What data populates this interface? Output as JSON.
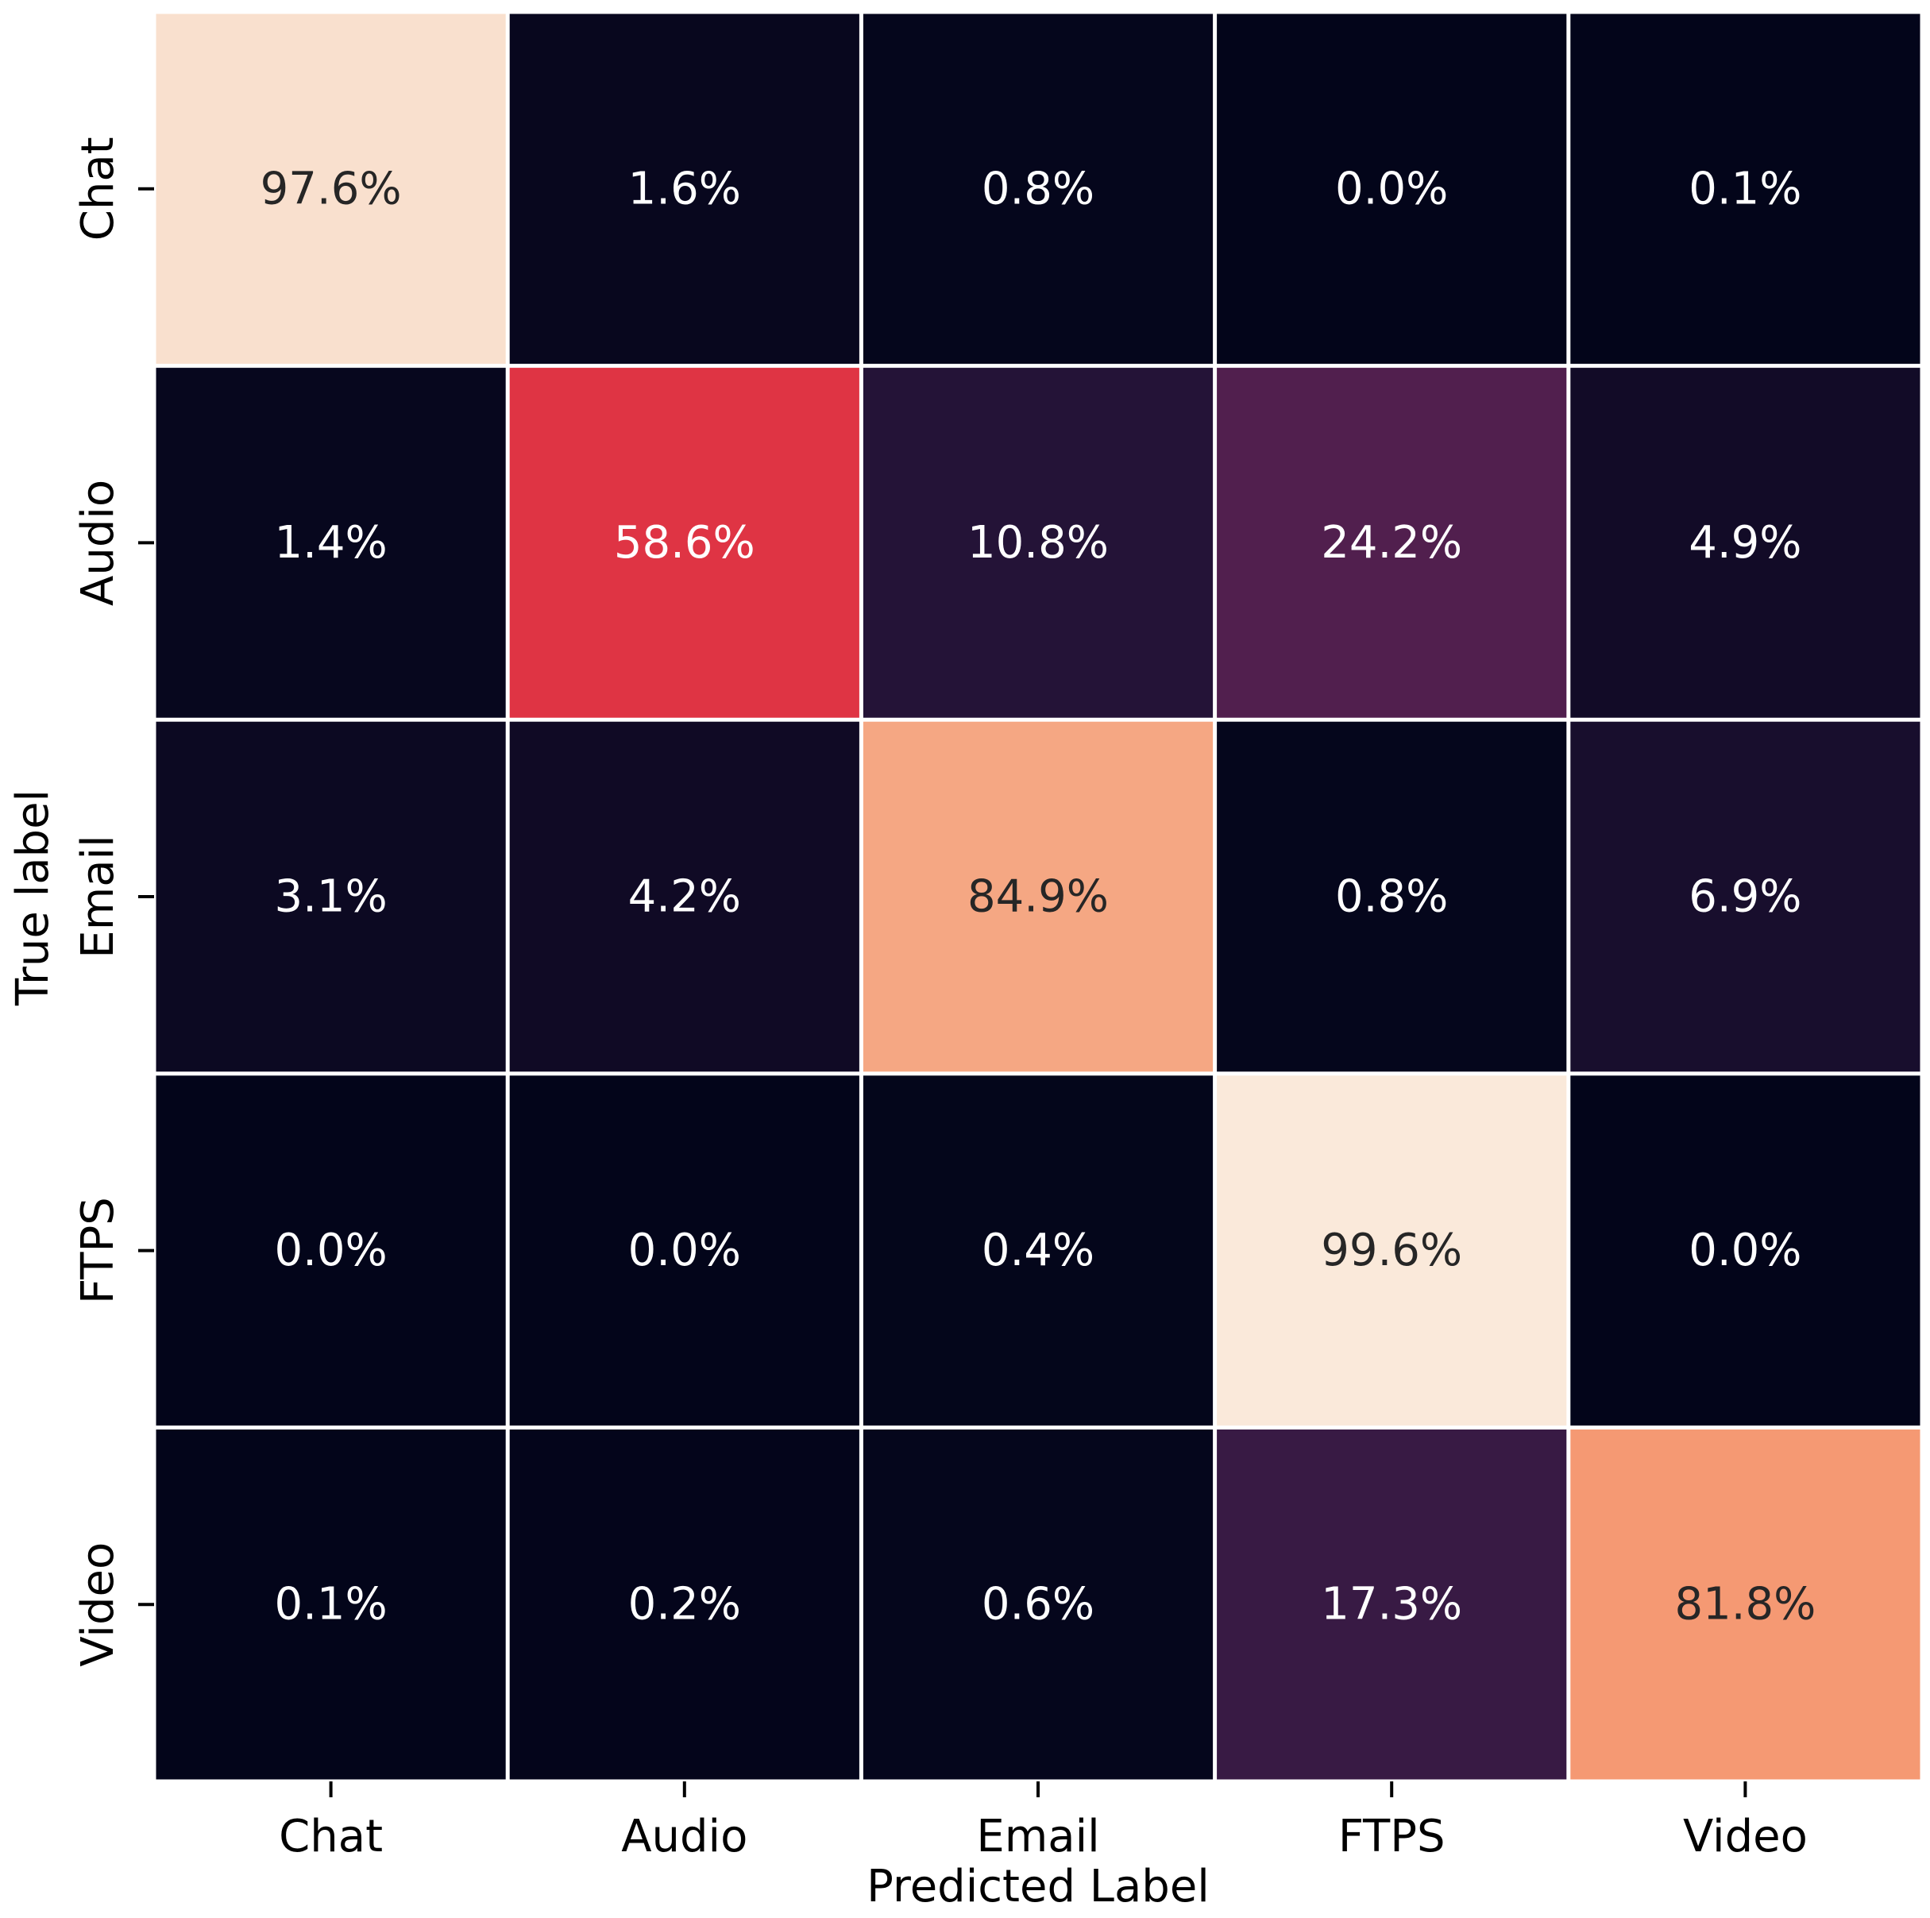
{
  "chart_data": {
    "type": "heatmap",
    "title": "",
    "xlabel": "Predicted Label",
    "ylabel": "True label",
    "x_categories": [
      "Chat",
      "Audio",
      "Email",
      "FTPS",
      "Video"
    ],
    "y_categories": [
      "Chat",
      "Audio",
      "Email",
      "FTPS",
      "Video"
    ],
    "values": [
      [
        97.6,
        1.6,
        0.8,
        0.0,
        0.1
      ],
      [
        1.4,
        58.6,
        10.8,
        24.2,
        4.9
      ],
      [
        3.1,
        4.2,
        84.9,
        0.8,
        6.9
      ],
      [
        0.0,
        0.0,
        0.4,
        99.6,
        0.0
      ],
      [
        0.1,
        0.2,
        0.6,
        17.3,
        81.8
      ]
    ],
    "value_suffix": "%",
    "decimals": 1,
    "value_range": [
      0,
      100
    ],
    "colormap": "rocket",
    "colorbar": false,
    "grid": false,
    "cell_separator_color": "#ffffff",
    "dark_text_color": "#262626",
    "light_text_color": "#ffffff"
  }
}
